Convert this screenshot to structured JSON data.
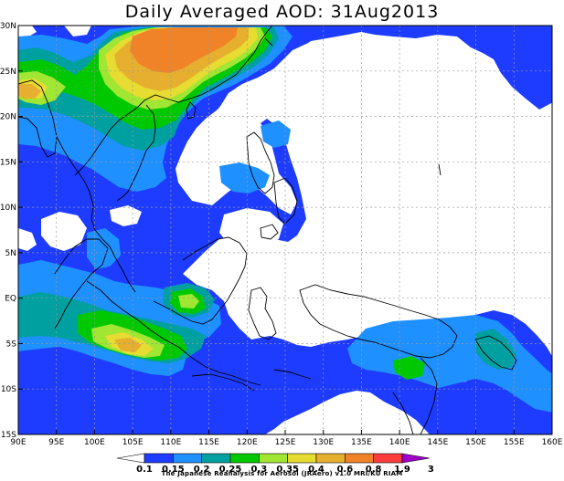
{
  "title": "Daily Averaged AOD: 31Aug2013",
  "credit": "The Japanese Reanalysis for Aerosol (JRAero) v1.0 MRI/KU RIAM",
  "map": {
    "lon_range": [
      90,
      160
    ],
    "lat_range": [
      -15,
      30
    ],
    "lon_ticks": [
      "90E",
      "95E",
      "100E",
      "105E",
      "110E",
      "115E",
      "120E",
      "125E",
      "130E",
      "135E",
      "140E",
      "145E",
      "150E",
      "155E",
      "160E"
    ],
    "lat_ticks": [
      "30N",
      "25N",
      "20N",
      "15N",
      "10N",
      "5N",
      "EQ",
      "5S",
      "10S",
      "15S"
    ],
    "gridlines": true
  },
  "colorbar": {
    "labels": [
      "0.1",
      "0.15",
      "0.2",
      "0.25",
      "0.3",
      "0.35",
      "0.4",
      "0.6",
      "0.8",
      "1.9",
      "3"
    ],
    "colors": [
      "#ffffff",
      "#1e3cff",
      "#1e90ff",
      "#00a0a0",
      "#00c800",
      "#a0e632",
      "#e6dc32",
      "#e6af2d",
      "#f08228",
      "#fa3c3c",
      "#a000c8"
    ]
  }
}
